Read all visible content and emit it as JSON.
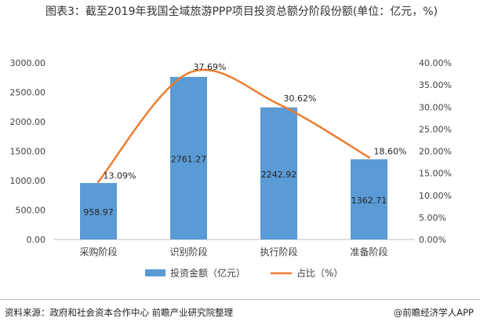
{
  "title": "图表3：截至2019年我国全域旅游PPP项目投资总额分阶段份额(单位：亿元，%)",
  "source": "资料来源：政府和社会资本合作中心 前瞻产业研究院整理",
  "credit": "@前瞻经济学人APP",
  "chart_data": {
    "type": "bar",
    "categories": [
      "采购阶段",
      "识别阶段",
      "执行阶段",
      "准备阶段"
    ],
    "series": [
      {
        "name": "投资金额（亿元）",
        "type": "bar",
        "axis": "left",
        "values": [
          958.97,
          2761.27,
          2242.92,
          1362.71
        ],
        "labels": [
          "958.97",
          "2761.27",
          "2242.92",
          "1362.71"
        ]
      },
      {
        "name": "占比（%）",
        "type": "line",
        "axis": "right",
        "values": [
          13.09,
          37.69,
          30.62,
          18.6
        ],
        "labels": [
          "13.09%",
          "37.69%",
          "30.62%",
          "18.60%"
        ]
      }
    ],
    "y_left": {
      "min": 0,
      "max": 3000,
      "step": 500,
      "ticks": [
        "0.00",
        "500.00",
        "1000.00",
        "1500.00",
        "2000.00",
        "2500.00",
        "3000.00"
      ]
    },
    "y_right": {
      "min": 0,
      "max": 40,
      "step": 5,
      "ticks": [
        "0.00%",
        "5.00%",
        "10.00%",
        "15.00%",
        "20.00%",
        "25.00%",
        "30.00%",
        "35.00%",
        "40.00%"
      ]
    },
    "legend_position": "bottom",
    "grid": false,
    "colors": {
      "bar": "#5b9bd5",
      "line": "#ed7d31"
    }
  }
}
